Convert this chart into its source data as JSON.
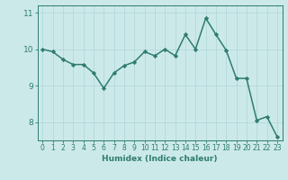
{
  "x": [
    0,
    1,
    2,
    3,
    4,
    5,
    6,
    7,
    8,
    9,
    10,
    11,
    12,
    13,
    14,
    15,
    16,
    17,
    18,
    19,
    20,
    21,
    22,
    23
  ],
  "y": [
    10.0,
    9.93,
    9.72,
    9.58,
    9.58,
    9.35,
    8.93,
    9.35,
    9.55,
    9.65,
    9.93,
    9.82,
    10.0,
    9.82,
    10.4,
    10.0,
    10.85,
    10.4,
    9.97,
    9.2,
    9.2,
    8.05,
    8.15,
    7.6
  ],
  "xlabel": "Humidex (Indice chaleur)",
  "ylim": [
    7.5,
    11.2
  ],
  "xlim": [
    -0.5,
    23.5
  ],
  "yticks": [
    8,
    9,
    10,
    11
  ],
  "xticks": [
    0,
    1,
    2,
    3,
    4,
    5,
    6,
    7,
    8,
    9,
    10,
    11,
    12,
    13,
    14,
    15,
    16,
    17,
    18,
    19,
    20,
    21,
    22,
    23
  ],
  "line_color": "#2e7d6e",
  "marker": "D",
  "marker_size": 2.2,
  "bg_color": "#cce9ea",
  "grid_color": "#afd4d6",
  "tick_color": "#2e7d6e",
  "label_color": "#2e7d6e",
  "line_width": 1.1,
  "tick_fontsize": 5.5,
  "xlabel_fontsize": 6.5
}
